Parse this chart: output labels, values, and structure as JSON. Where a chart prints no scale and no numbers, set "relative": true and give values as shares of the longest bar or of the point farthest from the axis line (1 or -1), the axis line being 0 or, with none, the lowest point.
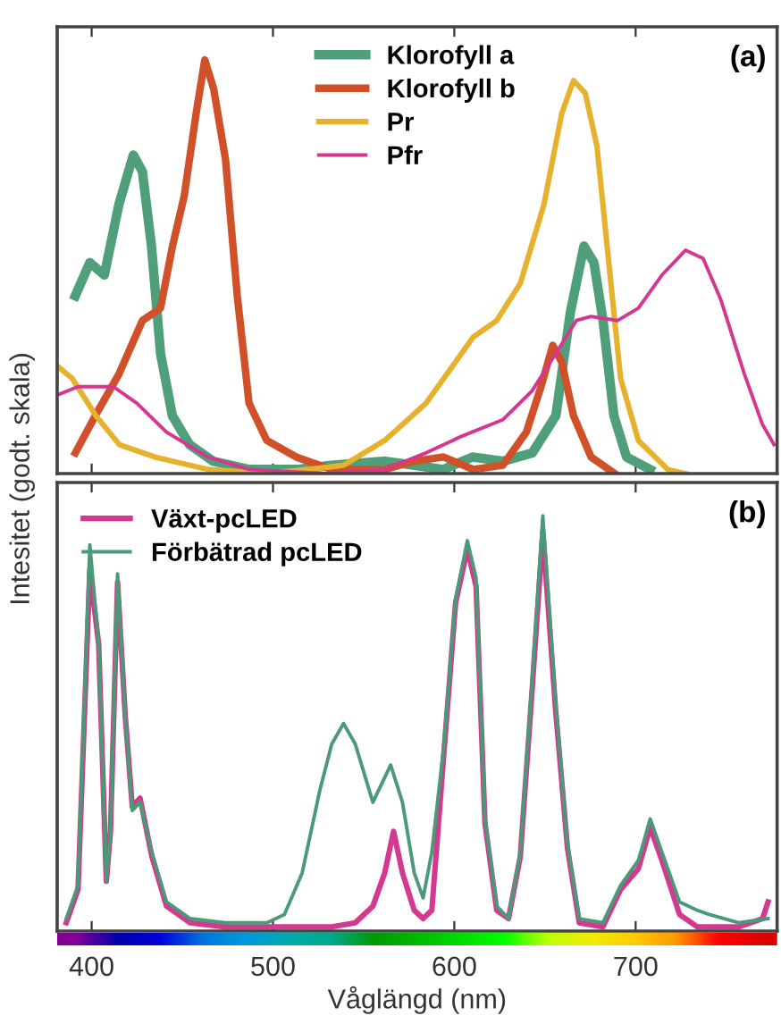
{
  "chart_data": [
    {
      "type": "line",
      "relative": true,
      "ylabel": "Intesitet (godt. skala)",
      "xlim": [
        381,
        778
      ],
      "xticks": [
        {
          "value": 400,
          "label": null
        },
        {
          "value": 500,
          "label": null
        },
        {
          "value": 600,
          "label": null
        },
        {
          "value": 700,
          "label": null
        }
      ],
      "tick_labels": false,
      "legend": "top",
      "grid": false,
      "annotations": [
        "(a)"
      ],
      "series": [
        {
          "name": "Klorofyll a",
          "color": "#4fa07a",
          "x": [
            391,
            399,
            407,
            415,
            423,
            428,
            433,
            438,
            444.5,
            454,
            467,
            487,
            513,
            532,
            562,
            578,
            594,
            610,
            627,
            643,
            656,
            664,
            671.5,
            677,
            682,
            688,
            695,
            708
          ],
          "values": [
            0.43,
            0.51,
            0.48,
            0.65,
            0.77,
            0.73,
            0.55,
            0.29,
            0.14,
            0.07,
            0.03,
            0.01,
            0.01,
            0.02,
            0.03,
            0.02,
            0.01,
            0.04,
            0.03,
            0.05,
            0.14,
            0.39,
            0.55,
            0.51,
            0.37,
            0.14,
            0.04,
            0.01
          ]
        },
        {
          "name": "Klorofyll b",
          "color": "#d0502a",
          "x": [
            391,
            402,
            415,
            428,
            438,
            444.6,
            451,
            457.6,
            462.4,
            467.3,
            473.8,
            480.3,
            486.8,
            496.6,
            512.8,
            532.4,
            561.6,
            577.9,
            594.1,
            610.4,
            626.7,
            639.7,
            647.8,
            654.3,
            659.2,
            665.7,
            675.4,
            688.5
          ],
          "values": [
            0.05,
            0.14,
            0.24,
            0.37,
            0.4,
            0.55,
            0.67,
            0.87,
            1,
            0.93,
            0.76,
            0.43,
            0.17,
            0.08,
            0.04,
            0.01,
            0.01,
            0.03,
            0.04,
            0.01,
            0.02,
            0.1,
            0.21,
            0.31,
            0.27,
            0.14,
            0.04,
            0
          ]
        },
        {
          "name": "Pr",
          "color": "#e6b22e",
          "x": [
            381.1,
            389.3,
            402.3,
            415.3,
            434.8,
            464.1,
            496.6,
            519.3,
            538.9,
            561.6,
            584.4,
            600.7,
            610.4,
            623.4,
            636.4,
            649.4,
            659.2,
            665.7,
            672.2,
            678.7,
            685.2,
            691.7,
            701.5,
            717.7,
            727.5
          ],
          "values": [
            0.26,
            0.23,
            0.14,
            0.07,
            0.04,
            0.01,
            0,
            0.01,
            0.02,
            0.08,
            0.17,
            0.27,
            0.33,
            0.37,
            0.46,
            0.65,
            0.87,
            0.95,
            0.92,
            0.79,
            0.51,
            0.23,
            0.08,
            0.01,
            0
          ]
        },
        {
          "name": "Pfr",
          "color": "#d6368f",
          "x": [
            381.1,
            392.5,
            412,
            425,
            441.3,
            464.1,
            486.8,
            529.1,
            561.6,
            584.4,
            603.9,
            626.7,
            642.9,
            655.9,
            667.3,
            675.4,
            690.1,
            701.5,
            714.5,
            727.5,
            737.2,
            747,
            760,
            769.8,
            776.3
          ],
          "values": [
            0.19,
            0.21,
            0.21,
            0.17,
            0.1,
            0.04,
            0.01,
            0,
            0.01,
            0.05,
            0.09,
            0.13,
            0.2,
            0.29,
            0.37,
            0.38,
            0.37,
            0.4,
            0.48,
            0.54,
            0.52,
            0.42,
            0.24,
            0.12,
            0.07
          ]
        }
      ]
    },
    {
      "type": "line",
      "relative": true,
      "xlabel": "Våglängd (nm)",
      "xlim": [
        381,
        778
      ],
      "xticks": [
        400,
        500,
        600,
        700
      ],
      "tick_labels": "x",
      "legend": "top left",
      "grid": false,
      "annotations": [
        "(b)"
      ],
      "series": [
        {
          "name": "Växt-pcLED",
          "color": "#d33a8f",
          "x": [
            386,
            392.5,
            399,
            403.9,
            408.1,
            410.4,
            414.3,
            418.5,
            422.4,
            426.7,
            433.2,
            441.3,
            454.3,
            473.8,
            496.6,
            516.1,
            532.4,
            545.4,
            555.1,
            561.6,
            566.5,
            571.4,
            577.9,
            582.8,
            587.6,
            594.1,
            600.7,
            607.2,
            612,
            616.9,
            623.4,
            629.9,
            636.4,
            642.9,
            648.8,
            655.9,
            662.4,
            668.9,
            681.9,
            691.7,
            701.5,
            708,
            714.5,
            724.2,
            734,
            740.5,
            756.7,
            770,
            773
          ],
          "values": [
            0.02,
            0.1,
            0.87,
            0.69,
            0.12,
            0.24,
            0.84,
            0.52,
            0.3,
            0.32,
            0.18,
            0.06,
            0.02,
            0.01,
            0.01,
            0.01,
            0.01,
            0.02,
            0.06,
            0.14,
            0.24,
            0.14,
            0.05,
            0.03,
            0.05,
            0.42,
            0.79,
            0.92,
            0.83,
            0.26,
            0.05,
            0.03,
            0.18,
            0.58,
            0.96,
            0.53,
            0.2,
            0.02,
            0.01,
            0.1,
            0.15,
            0.25,
            0.17,
            0.04,
            0.01,
            0.01,
            0.01,
            0.03,
            0.07
          ]
        },
        {
          "name": "Förbätrad pcLED",
          "color": "#4a9a78",
          "x": [
            386,
            392.5,
            399,
            403.9,
            408.1,
            410.4,
            414.3,
            418.5,
            422.4,
            426.7,
            433.2,
            441.3,
            454.3,
            473.8,
            496.6,
            506.3,
            516.1,
            525.9,
            532.4,
            538.9,
            545.4,
            555.1,
            564.9,
            571.4,
            577.9,
            582.8,
            587.6,
            594.1,
            600.7,
            607.2,
            612,
            616.9,
            623.4,
            629.9,
            636.4,
            642.9,
            648.8,
            655.9,
            662.4,
            668.9,
            681.9,
            691.7,
            701.5,
            708,
            714.5,
            724.2,
            734,
            740.5,
            756.7,
            773
          ],
          "values": [
            0.03,
            0.11,
            0.93,
            0.69,
            0.12,
            0.24,
            0.86,
            0.52,
            0.29,
            0.31,
            0.19,
            0.07,
            0.03,
            0.02,
            0.02,
            0.04,
            0.14,
            0.34,
            0.45,
            0.5,
            0.45,
            0.31,
            0.4,
            0.31,
            0.14,
            0.08,
            0.19,
            0.44,
            0.8,
            0.94,
            0.85,
            0.27,
            0.06,
            0.03,
            0.19,
            0.6,
            1,
            0.55,
            0.21,
            0.03,
            0.02,
            0.11,
            0.17,
            0.27,
            0.19,
            0.07,
            0.05,
            0.04,
            0.02,
            0.03
          ]
        }
      ]
    }
  ]
}
